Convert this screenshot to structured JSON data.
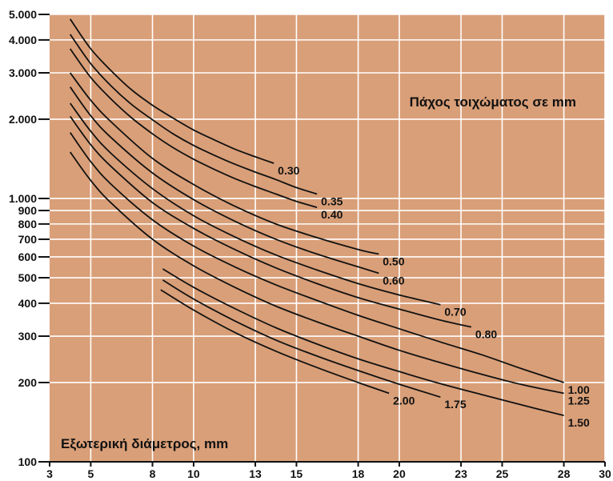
{
  "colors": {
    "plot_background": "#d99f78",
    "grid": "#ffffff",
    "curve": "#111111",
    "axis": "#111111"
  },
  "chart_data": {
    "type": "line",
    "y_scale": "log",
    "xlim": [
      3,
      30
    ],
    "ylim": [
      100,
      5000
    ],
    "grid": true,
    "x_ticks": [
      3,
      5,
      8,
      10,
      13,
      15,
      18,
      20,
      23,
      25,
      28,
      30
    ],
    "x_tick_labels": [
      "3",
      "5",
      "8",
      "10",
      "13",
      "15",
      "18",
      "20",
      "23",
      "25",
      "28",
      "30"
    ],
    "y_ticks": [
      100,
      200,
      300,
      400,
      500,
      600,
      700,
      800,
      900,
      1000,
      2000,
      3000,
      4000,
      5000
    ],
    "y_tick_labels": [
      "100",
      "200",
      "300",
      "400",
      "500",
      "600",
      "700",
      "800",
      "900",
      "1.000",
      "2.000",
      "3.000",
      "4.000",
      "5.000"
    ],
    "annotations": {
      "legend_title": "Πάχος τοιχώματος σε mm",
      "xlabel": "Εξωτερική διάμετρος, mm"
    },
    "series": [
      {
        "name": "0.30",
        "x": [
          4.0,
          5.0,
          6.0,
          7.0,
          8.0,
          9.0,
          10.0,
          11.0,
          12.0,
          13.0,
          13.9
        ],
        "y": [
          4800,
          3700,
          3050,
          2580,
          2260,
          2020,
          1820,
          1670,
          1540,
          1440,
          1360
        ]
      },
      {
        "name": "0.35",
        "x": [
          4.0,
          5.0,
          6.0,
          7.0,
          8.0,
          9.0,
          10.0,
          11.0,
          12.0,
          13.0,
          14.0,
          15.0,
          16.0
        ],
        "y": [
          4200,
          3250,
          2670,
          2270,
          1990,
          1760,
          1590,
          1460,
          1350,
          1260,
          1180,
          1100,
          1040
        ]
      },
      {
        "name": "0.40",
        "x": [
          4.0,
          5.0,
          6.0,
          7.0,
          8.0,
          9.0,
          10.0,
          11.0,
          12.0,
          13.0,
          14.0,
          15.0,
          16.0
        ],
        "y": [
          3700,
          2880,
          2380,
          2020,
          1760,
          1560,
          1410,
          1290,
          1190,
          1110,
          1040,
          975,
          925
        ]
      },
      {
        "name": "0.50",
        "x": [
          4.0,
          5.0,
          6.0,
          8.0,
          10.0,
          12.0,
          14.0,
          16.0,
          18.0,
          19.0
        ],
        "y": [
          3000,
          2360,
          1950,
          1420,
          1130,
          935,
          800,
          710,
          640,
          615
        ]
      },
      {
        "name": "0.60",
        "x": [
          4.0,
          5.0,
          6.0,
          8.0,
          10.0,
          12.0,
          14.0,
          16.0,
          18.0,
          19.0
        ],
        "y": [
          2650,
          2060,
          1700,
          1250,
          990,
          820,
          700,
          615,
          550,
          520
        ]
      },
      {
        "name": "0.70",
        "x": [
          4.0,
          5.0,
          6.0,
          8.0,
          10.0,
          12.0,
          14.0,
          16.0,
          18.0,
          20.0,
          22.0
        ],
        "y": [
          2300,
          1800,
          1480,
          1090,
          860,
          715,
          610,
          535,
          475,
          430,
          395
        ]
      },
      {
        "name": "0.80",
        "x": [
          4.0,
          5.0,
          6.0,
          8.0,
          10.0,
          12.0,
          14.0,
          16.0,
          18.0,
          20.0,
          22.0,
          23.5
        ],
        "y": [
          2050,
          1600,
          1320,
          965,
          770,
          640,
          545,
          475,
          420,
          380,
          345,
          325
        ]
      },
      {
        "name": "1.00",
        "x": [
          4.0,
          5.0,
          6.0,
          8.0,
          10.0,
          12.0,
          14.0,
          16.0,
          18.0,
          20.0,
          22.0,
          24.0,
          26.0,
          28.0
        ],
        "y": [
          1780,
          1380,
          1130,
          830,
          660,
          550,
          470,
          410,
          360,
          320,
          285,
          255,
          225,
          200
        ]
      },
      {
        "name": "1.25",
        "x": [
          4.0,
          5.0,
          6.0,
          8.0,
          10.0,
          12.0,
          14.0,
          16.0,
          18.0,
          20.0,
          22.0,
          24.0,
          26.0,
          28.0
        ],
        "y": [
          1500,
          1170,
          960,
          700,
          555,
          460,
          390,
          340,
          300,
          265,
          238,
          215,
          196,
          182
        ]
      },
      {
        "name": "1.50",
        "x": [
          8.5,
          10.0,
          12.0,
          14.0,
          16.0,
          18.0,
          20.0,
          22.0,
          24.0,
          26.0,
          28.0
        ],
        "y": [
          540,
          460,
          382,
          323,
          280,
          246,
          220,
          198,
          180,
          164,
          150
        ]
      },
      {
        "name": "1.75",
        "x": [
          8.5,
          10.0,
          12.0,
          14.0,
          16.0,
          18.0,
          20.0,
          22.0
        ],
        "y": [
          490,
          415,
          343,
          290,
          252,
          222,
          197,
          176
        ]
      },
      {
        "name": "2.00",
        "x": [
          8.4,
          10.0,
          12.0,
          14.0,
          16.0,
          18.0,
          19.5
        ],
        "y": [
          450,
          377,
          310,
          263,
          228,
          200,
          182
        ]
      }
    ]
  }
}
